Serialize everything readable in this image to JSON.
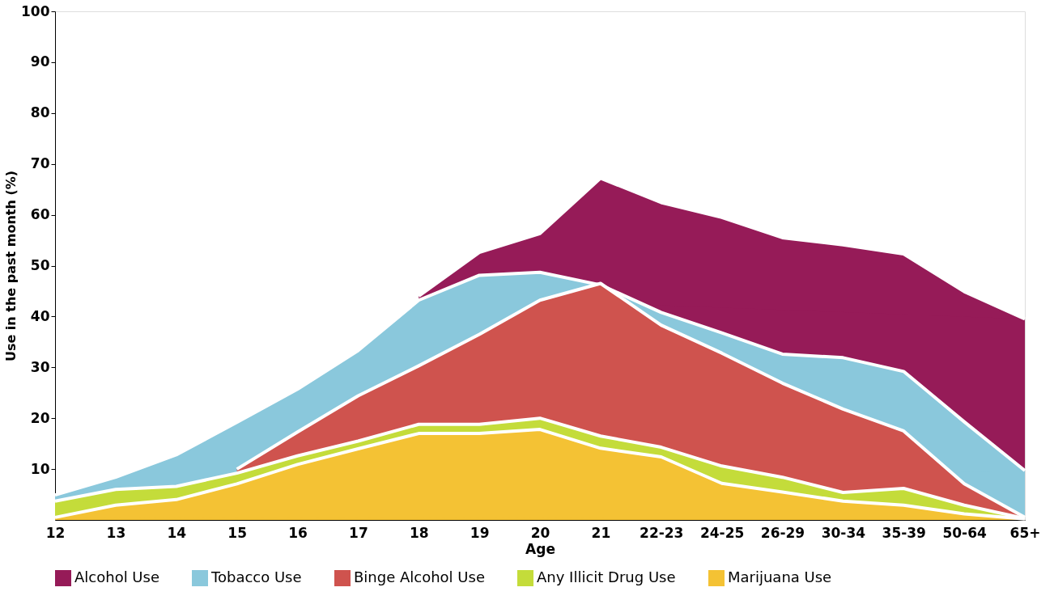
{
  "chart_data": {
    "type": "area",
    "xlabel": "Age",
    "ylabel": "Use in the past month (%)",
    "categories": [
      "12",
      "13",
      "14",
      "15",
      "16",
      "17",
      "18",
      "19",
      "20",
      "21",
      "22-23",
      "24-25",
      "26-29",
      "30-34",
      "35-39",
      "50-64",
      "65+"
    ],
    "series": [
      {
        "name": "Alcohol Use",
        "color": "#961b58",
        "values": [
          null,
          null,
          null,
          null,
          null,
          null,
          44,
          52.6,
          56.3,
          67.2,
          62.4,
          59.5,
          55.5,
          54.1,
          52.3,
          44.9,
          39.5
        ]
      },
      {
        "name": "Tobacco Use",
        "color": "#8ac8dc",
        "values": [
          4.9,
          8.4,
          12.8,
          19.2,
          25.7,
          33.3,
          43.2,
          48.1,
          48.7,
          46.2,
          40.8,
          36.8,
          32.6,
          31.9,
          29.2,
          19.3,
          9.7
        ]
      },
      {
        "name": "Binge Alcohol Use",
        "color": "#cf534e",
        "values": [
          null,
          null,
          null,
          10,
          17.3,
          24.4,
          30.3,
          36.5,
          43.2,
          46.5,
          38.3,
          32.8,
          26.9,
          21.8,
          17.5,
          7.1,
          0.5
        ]
      },
      {
        "name": "Any Illicit Drug Use",
        "color": "#c4dc3a",
        "values": [
          3.7,
          6.0,
          6.6,
          9.2,
          12.6,
          15.5,
          18.8,
          18.8,
          20.0,
          16.5,
          14.3,
          10.6,
          8.4,
          5.4,
          6.2,
          2.9,
          0.3
        ]
      },
      {
        "name": "Marijuana Use",
        "color": "#f4c234",
        "values": [
          0.5,
          2.9,
          4.0,
          7.1,
          10.9,
          14.0,
          17.0,
          17.0,
          17.8,
          14.1,
          12.4,
          7.2,
          5.5,
          3.7,
          2.9,
          1.2,
          0.2
        ]
      }
    ],
    "ylim": [
      0,
      100
    ],
    "yticks": [
      10,
      20,
      30,
      40,
      50,
      60,
      70,
      80,
      90,
      100
    ],
    "grid": false,
    "legend": "bottom"
  }
}
